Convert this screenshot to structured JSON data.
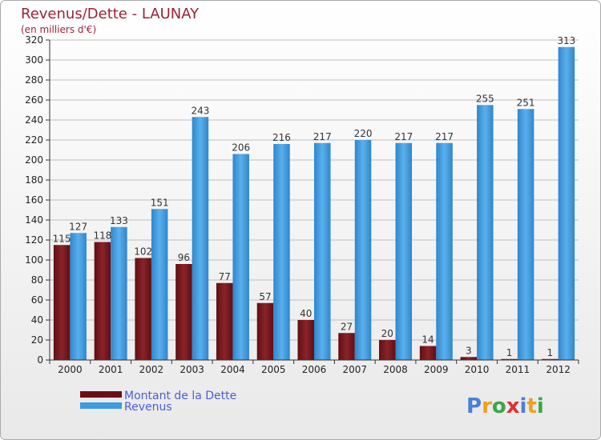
{
  "chart_data": {
    "type": "bar",
    "title": "Revenus/Dette - LAUNAY",
    "subtitle": "(en milliers d'€)",
    "categories": [
      "2000",
      "2001",
      "2002",
      "2003",
      "2004",
      "2005",
      "2006",
      "2007",
      "2008",
      "2009",
      "2010",
      "2011",
      "2012"
    ],
    "series": [
      {
        "name": "Montant de la Dette",
        "color": "#7a1a1f",
        "values": [
          115,
          118,
          102,
          96,
          77,
          57,
          40,
          27,
          20,
          14,
          3,
          1,
          1
        ]
      },
      {
        "name": "Revenus",
        "color": "#3d9be0",
        "values": [
          127,
          133,
          151,
          243,
          206,
          216,
          217,
          220,
          217,
          217,
          255,
          251,
          313
        ]
      }
    ],
    "ylim": [
      0,
      320
    ],
    "ytick_step": 20,
    "grid": true,
    "legend_position": "bottom-left"
  },
  "logo": {
    "text": "Proxiti",
    "letter_colors": [
      "#4a7fd8",
      "#f0a020",
      "#3aa64a",
      "#e03030",
      "#4a7fd8",
      "#f0a020",
      "#3aa64a"
    ]
  }
}
